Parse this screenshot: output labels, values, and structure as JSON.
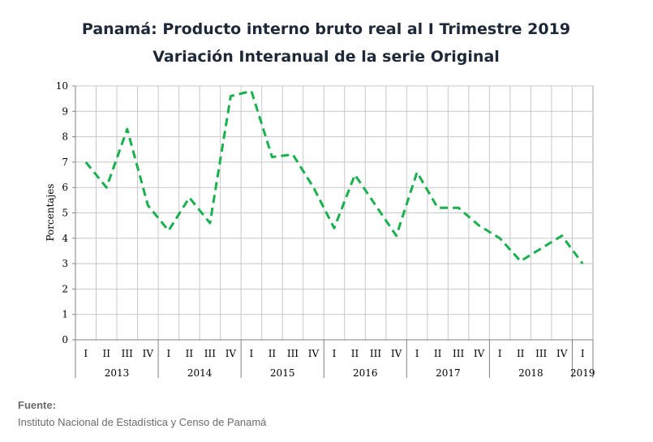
{
  "chart_data": {
    "type": "line",
    "title": "Panamá: Producto interno bruto real al I Trimestre 2019",
    "subtitle": "Variación Interanual de la serie Original",
    "ylabel": "Porcentajes",
    "xlabel": "",
    "ylim": [
      0,
      10
    ],
    "yticks": [
      "0",
      "1",
      "2",
      "3",
      "4",
      "5",
      "6",
      "7",
      "8",
      "9",
      "10"
    ],
    "grid": true,
    "legend": "none",
    "quarter_labels": [
      "I",
      "II",
      "III",
      "IV",
      "I",
      "II",
      "III",
      "IV",
      "I",
      "II",
      "III",
      "IV",
      "I",
      "II",
      "III",
      "IV",
      "I",
      "II",
      "III",
      "IV",
      "I",
      "II",
      "III",
      "IV",
      "I"
    ],
    "years": [
      {
        "label": "2013",
        "quarters": 4
      },
      {
        "label": "2014",
        "quarters": 4
      },
      {
        "label": "2015",
        "quarters": 4
      },
      {
        "label": "2016",
        "quarters": 4
      },
      {
        "label": "2017",
        "quarters": 4
      },
      {
        "label": "2018",
        "quarters": 4
      },
      {
        "label": "2019",
        "quarters": 1
      }
    ],
    "series": [
      {
        "values": [
          7.0,
          6.0,
          8.3,
          5.3,
          4.3,
          5.6,
          4.6,
          9.6,
          9.8,
          7.2,
          7.3,
          6.0,
          4.4,
          6.5,
          5.3,
          4.1,
          6.6,
          5.2,
          5.2,
          4.5,
          4.0,
          3.1,
          3.6,
          4.1,
          3.0
        ]
      }
    ],
    "line_color": "#18b14d"
  },
  "source": {
    "label": "Fuente:",
    "text": "Instituto Nacional de Estadística y Censo de Panamá"
  }
}
